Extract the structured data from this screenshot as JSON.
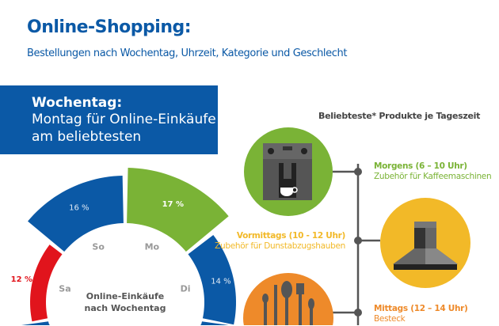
{
  "header": {
    "title": "Online-Shopping:",
    "subtitle": "Bestellungen nach Wochentag, Uhrzeit, Kategorie und Geschlecht"
  },
  "weekday_box": {
    "heading": "Wochentag:",
    "line1": "Montag für Online-Einkäufe",
    "line2": "am beliebtesten"
  },
  "chart_data": {
    "type": "radial-bar",
    "center_label": [
      "Online-Einkäufe",
      "nach Wochentag"
    ],
    "categories": [
      "Mo",
      "Di",
      "Sa",
      "So"
    ],
    "values": [
      17,
      14,
      12,
      16
    ],
    "value_labels": [
      "17 %",
      "14 %",
      "12 %",
      "16 %"
    ],
    "colors": [
      "#7ab336",
      "#0b59a6",
      "#e1141c",
      "#0b59a6"
    ],
    "unit": "%"
  },
  "products": {
    "title": "Beliebteste* Produkte je Tageszeit",
    "items": [
      {
        "time": "Morgens (6 – 10 Uhr)",
        "product": "Zubehör für Kaffeemaschinen",
        "color": "#7ab336",
        "icon": "coffee-machine-icon"
      },
      {
        "time": "Vormittags (10 - 12 Uhr)",
        "product": "Zubehör für Dunstabzugshauben",
        "color": "#f2b928",
        "icon": "cooker-hood-icon"
      },
      {
        "time": "Mittags (12 – 14 Uhr)",
        "product": "Besteck",
        "color": "#ee8a2a",
        "icon": "cutlery-icon"
      }
    ]
  }
}
